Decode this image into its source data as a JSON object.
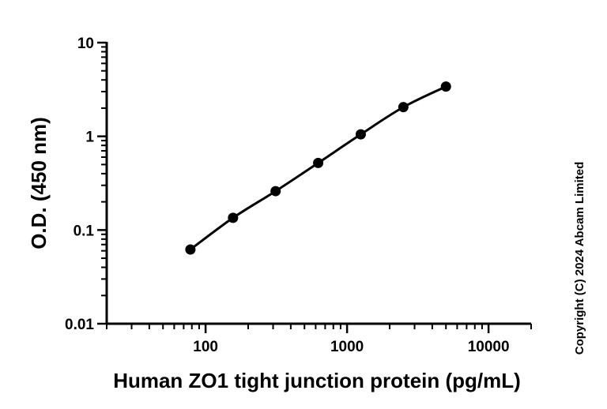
{
  "chart_data": {
    "type": "scatter",
    "title": "",
    "xlabel": "Human ZO1 tight junction protein (pg/mL)",
    "ylabel": "O.D. (450 nm)",
    "x_scale": "log",
    "y_scale": "log",
    "xlim": [
      20,
      20000
    ],
    "ylim": [
      0.01,
      10
    ],
    "x_ticks": [
      100,
      1000,
      10000
    ],
    "x_tick_labels": [
      "100",
      "1000",
      "10000"
    ],
    "y_ticks": [
      0.01,
      0.1,
      1,
      10
    ],
    "y_tick_labels": [
      "0.01",
      "0.1",
      "1",
      "10"
    ],
    "grid": false,
    "legend": "none",
    "fit_line": true,
    "color": "#000000",
    "series": [
      {
        "x": [
          78.1,
          156.3,
          312.5,
          625,
          1250,
          2500,
          5000
        ],
        "y": [
          0.062,
          0.135,
          0.26,
          0.52,
          1.05,
          2.05,
          3.4
        ]
      }
    ]
  },
  "copyright": "Copyright (C) 2024 Abcam Limited"
}
